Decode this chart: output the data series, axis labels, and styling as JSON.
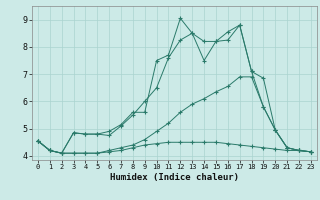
{
  "xlabel": "Humidex (Indice chaleur)",
  "background_color": "#cceae7",
  "grid_color": "#aad4d0",
  "line_color": "#2a7a6a",
  "xlim": [
    -0.5,
    23.5
  ],
  "ylim": [
    3.85,
    9.5
  ],
  "yticks": [
    4,
    5,
    6,
    7,
    8,
    9
  ],
  "xticks": [
    0,
    1,
    2,
    3,
    4,
    5,
    6,
    7,
    8,
    9,
    10,
    11,
    12,
    13,
    14,
    15,
    16,
    17,
    18,
    19,
    20,
    21,
    22,
    23
  ],
  "series": [
    {
      "x": [
        0,
        1,
        2,
        3,
        4,
        5,
        6,
        7,
        8,
        9,
        10,
        11,
        12,
        13,
        14,
        15,
        16,
        17,
        18,
        19,
        20,
        21,
        22,
        23
      ],
      "y": [
        4.55,
        4.2,
        4.1,
        4.1,
        4.1,
        4.1,
        4.15,
        4.2,
        4.3,
        4.4,
        4.45,
        4.5,
        4.5,
        4.5,
        4.5,
        4.5,
        4.45,
        4.4,
        4.35,
        4.3,
        4.25,
        4.2,
        4.2,
        4.15
      ]
    },
    {
      "x": [
        0,
        1,
        2,
        3,
        4,
        5,
        6,
        7,
        8,
        9,
        10,
        11,
        12,
        13,
        14,
        15,
        16,
        17,
        18,
        19,
        20,
        21,
        22,
        23
      ],
      "y": [
        4.55,
        4.2,
        4.1,
        4.1,
        4.1,
        4.1,
        4.2,
        4.3,
        4.4,
        4.6,
        4.9,
        5.2,
        5.6,
        5.9,
        6.1,
        6.35,
        6.55,
        6.9,
        6.9,
        5.8,
        4.95,
        4.3,
        4.2,
        4.15
      ]
    },
    {
      "x": [
        0,
        1,
        2,
        3,
        4,
        5,
        6,
        7,
        8,
        9,
        10,
        11,
        12,
        13,
        14,
        15,
        16,
        17,
        18,
        19,
        20,
        21,
        22,
        23
      ],
      "y": [
        4.55,
        4.2,
        4.1,
        4.85,
        4.8,
        4.8,
        4.75,
        5.1,
        5.5,
        6.0,
        6.5,
        7.6,
        8.25,
        8.5,
        7.5,
        8.2,
        8.25,
        8.8,
        7.1,
        6.85,
        4.95,
        4.3,
        4.2,
        4.15
      ]
    },
    {
      "x": [
        0,
        1,
        2,
        3,
        4,
        5,
        6,
        7,
        8,
        9,
        10,
        11,
        12,
        13,
        14,
        15,
        16,
        17,
        18,
        19,
        20,
        21,
        22,
        23
      ],
      "y": [
        4.55,
        4.2,
        4.1,
        4.85,
        4.8,
        4.8,
        4.9,
        5.15,
        5.6,
        5.6,
        7.5,
        7.7,
        9.05,
        8.5,
        8.2,
        8.2,
        8.55,
        8.8,
        7.1,
        5.8,
        4.95,
        4.3,
        4.2,
        4.15
      ]
    }
  ]
}
